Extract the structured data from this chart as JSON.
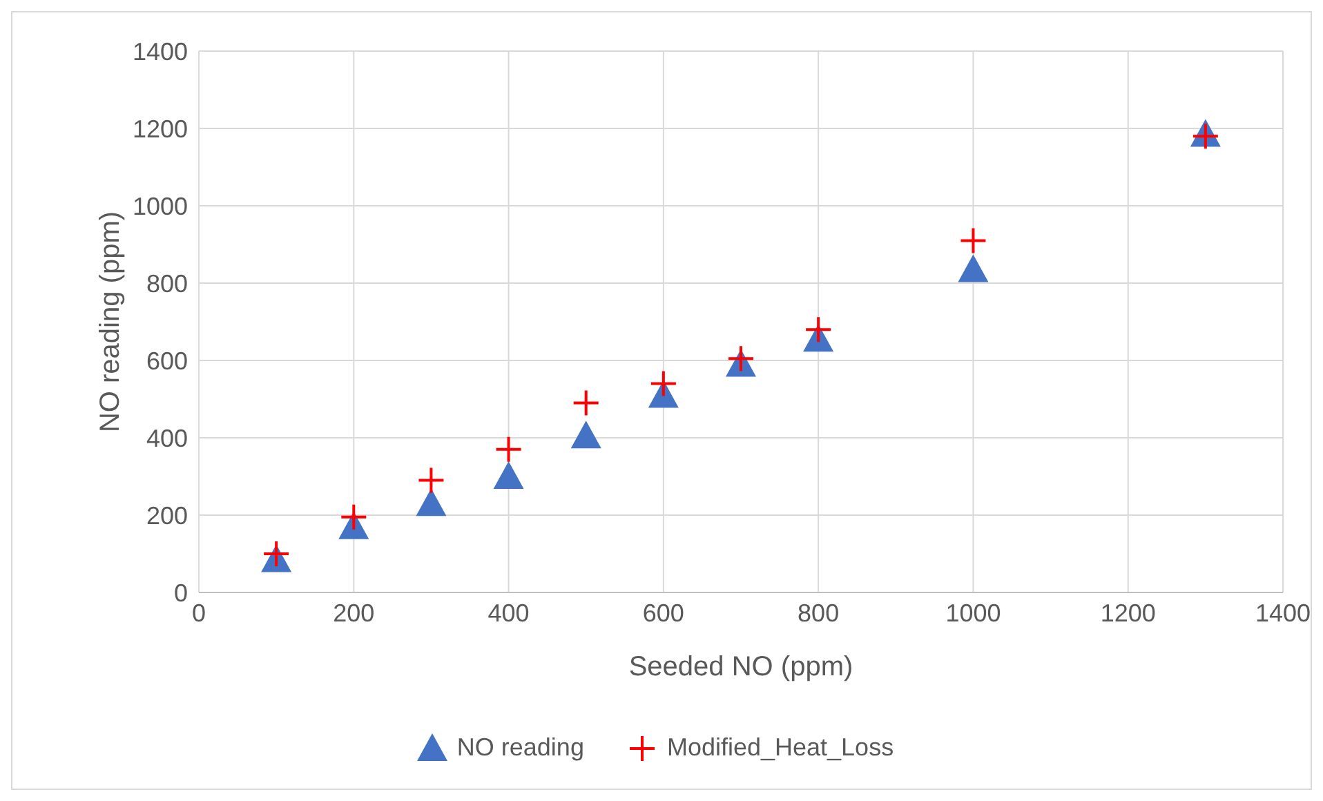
{
  "chart_data": {
    "type": "scatter",
    "xlabel": "Seeded NO (ppm)",
    "ylabel": "NO reading (ppm)",
    "x": [
      100,
      200,
      300,
      400,
      500,
      600,
      700,
      800,
      1000,
      1300
    ],
    "series": [
      {
        "name": "NO reading",
        "color": "#4472c4",
        "marker": "triangle",
        "values": [
          85,
          170,
          230,
          300,
          405,
          510,
          590,
          655,
          835,
          1185
        ]
      },
      {
        "name": "Modified_Heat_Loss",
        "color": "#ff0000",
        "marker": "cross",
        "values": [
          100,
          195,
          290,
          370,
          490,
          540,
          605,
          680,
          910,
          1180
        ]
      }
    ],
    "xlim": [
      0,
      1400
    ],
    "xticks": [
      0,
      200,
      400,
      600,
      800,
      1000,
      1200,
      1400
    ],
    "ylim": [
      0,
      1400
    ],
    "yticks": [
      0,
      200,
      400,
      600,
      800,
      1000,
      1200,
      1400
    ],
    "grid": true,
    "legend": "bottom"
  }
}
